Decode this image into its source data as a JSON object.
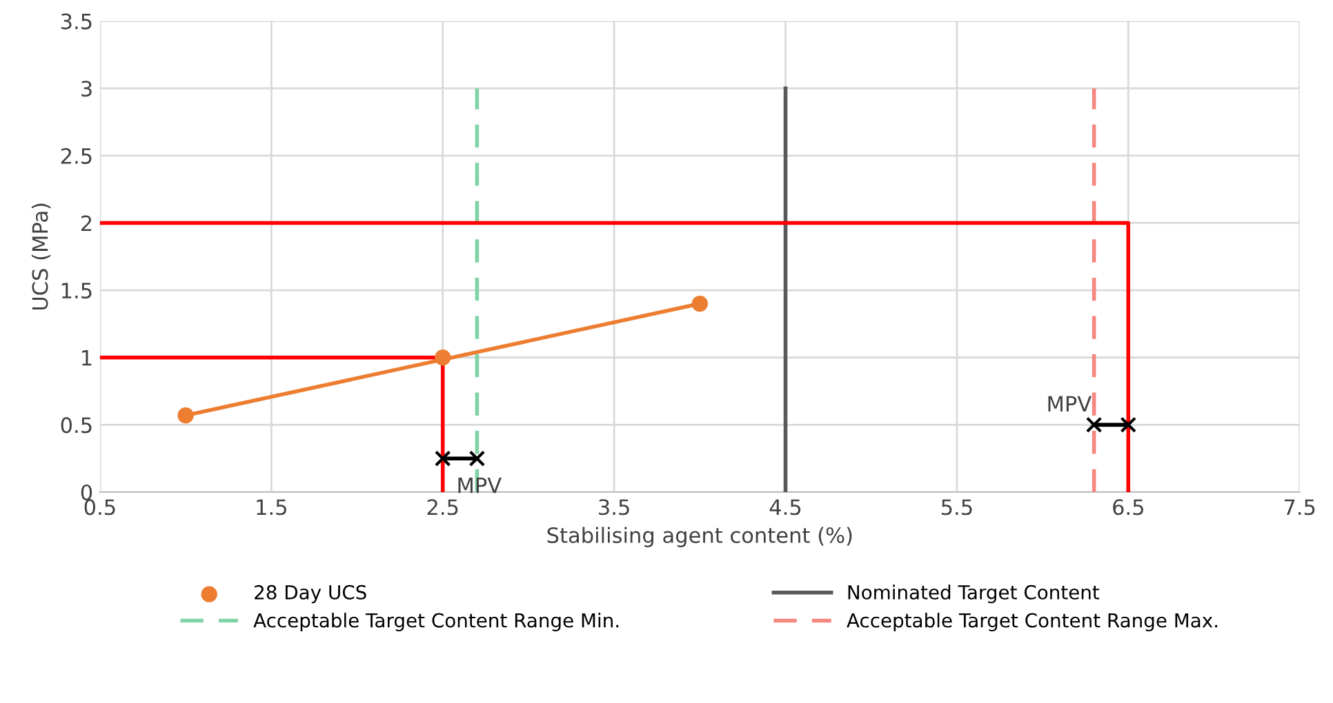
{
  "chart_data": {
    "type": "scatter",
    "xlabel": "Stabilising agent content (%)",
    "ylabel": "UCS (MPa)",
    "xlim": [
      0.5,
      7.5
    ],
    "xticks": [
      0.5,
      1.5,
      2.5,
      3.5,
      4.5,
      5.5,
      6.5,
      7.5
    ],
    "ylim": [
      0,
      3.5
    ],
    "yticks": [
      0,
      0.5,
      1,
      1.5,
      2,
      2.5,
      3,
      3.5
    ],
    "grid": true,
    "legend": "bottom",
    "series": [
      {
        "name": "28 Day UCS",
        "color": "#ed7d31",
        "marker": "circle",
        "x": [
          1,
          2.5,
          4
        ],
        "values": [
          0.57,
          1.0,
          1.4
        ]
      },
      {
        "type": "line",
        "color": "#ed7d31",
        "marker": "none",
        "line_style": "solid",
        "x": [
          1,
          4
        ],
        "values": [
          0.57,
          1.4
        ]
      },
      {
        "type": "line",
        "name": "Nominated Target Content",
        "color": "#595959",
        "marker": "none",
        "line_style": "solid",
        "x": [
          4.5,
          4.5
        ],
        "values": [
          0,
          3
        ]
      },
      {
        "type": "line",
        "name": "Acceptable Target Content Range Min.",
        "color": "#7fd3a6",
        "marker": "none",
        "line_style": "dashed",
        "x": [
          2.7,
          2.7
        ],
        "values": [
          0,
          3
        ]
      },
      {
        "type": "line",
        "name": "Acceptable Target Content Range Max.",
        "color": "#f4877f",
        "marker": "none",
        "line_style": "dashed",
        "x": [
          6.3,
          6.3
        ],
        "values": [
          0,
          3
        ]
      },
      {
        "type": "line",
        "color": "#ff0000",
        "marker": "none",
        "line_style": "solid",
        "x": [
          0.5,
          2.5,
          2.5
        ],
        "values": [
          1,
          1,
          0
        ]
      },
      {
        "type": "line",
        "color": "#ff0000",
        "marker": "none",
        "line_style": "solid",
        "x": [
          0.5,
          6.5,
          6.5
        ],
        "values": [
          2,
          2,
          0
        ]
      },
      {
        "type": "line",
        "color": "#000000",
        "marker": "cross",
        "line_style": "solid",
        "x": [
          2.5,
          2.7
        ],
        "values": [
          0.25,
          0.25
        ]
      },
      {
        "type": "line",
        "color": "#000000",
        "marker": "cross",
        "line_style": "solid",
        "x": [
          6.3,
          6.5
        ],
        "values": [
          0.5,
          0.5
        ]
      }
    ],
    "annotations": [
      {
        "text": "MPV",
        "x": 2.6,
        "y": 0.25
      },
      {
        "text": "MPV",
        "x": 6.4,
        "y": 0.5
      }
    ]
  }
}
